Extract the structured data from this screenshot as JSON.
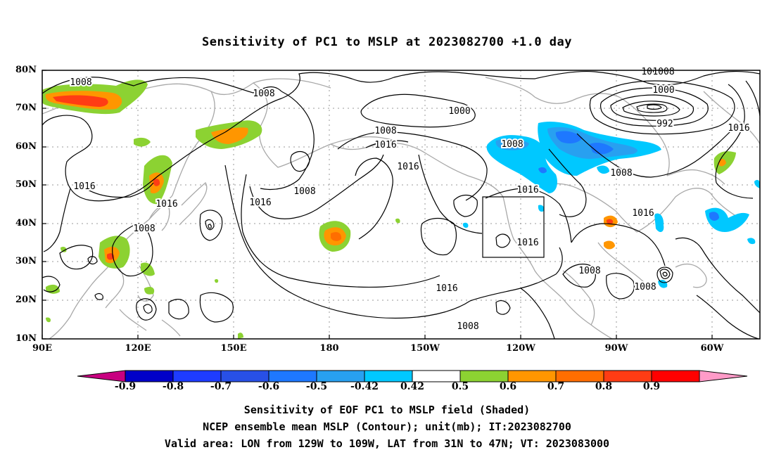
{
  "title": "Sensitivity of PC1 to MSLP at 2023082700 +1.0 day",
  "lat_labels": [
    "80N",
    "70N",
    "60N",
    "50N",
    "40N",
    "30N",
    "20N",
    "10N"
  ],
  "lon_labels": [
    "90E",
    "120E",
    "150E",
    "180",
    "150W",
    "120W",
    "90W",
    "60W"
  ],
  "contour_labels": [
    "1008",
    "1008",
    "1008",
    "1000",
    "1008",
    "1016",
    "1016",
    "1008",
    "1016",
    "1016",
    "1016",
    "1008",
    "1016",
    "1016",
    "1008",
    "1016",
    "1008",
    "1008",
    "1008",
    "1000",
    "992",
    "1016",
    "1008",
    "1016",
    "1008"
  ],
  "colorbar": {
    "values": [
      "-0.9",
      "-0.8",
      "-0.7",
      "-0.6",
      "-0.5",
      "-0.42",
      "0.42",
      "0.5",
      "0.6",
      "0.7",
      "0.8",
      "0.9"
    ],
    "colors": [
      "#c80080",
      "#0000c8",
      "#1e3cff",
      "#2850e6",
      "#1e78ff",
      "#28a0f0",
      "#00c8ff",
      "#ffffff",
      "#8cd232",
      "#ff9600",
      "#ff6e00",
      "#ff3c14",
      "#ff0000",
      "#ff9bc8"
    ]
  },
  "captions": {
    "line1": "Sensitivity of EOF PC1 to MSLP field (Shaded)",
    "line2": "NCEP ensemble mean MSLP (Contour); unit(mb); IT:2023082700",
    "line3": "Valid area: LON from 129W to 109W, LAT from 31N to 47N; VT: 2023083000"
  }
}
